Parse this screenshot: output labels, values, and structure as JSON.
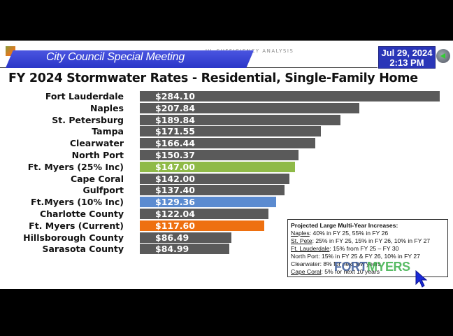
{
  "header": {
    "meeting_banner": "City Council Special Meeting",
    "faint_section_text": "UL SUFFICIENCY ANALYSIS",
    "date": "Jul 29, 2024",
    "time": "2:13 PM"
  },
  "slide": {
    "title": "FY 2024 Stormwater Rates - Residential, Single-Family Home"
  },
  "chart_data": {
    "type": "bar",
    "orientation": "horizontal",
    "title": "FY 2024 Stormwater Rates - Residential, Single-Family Home",
    "xlabel": "",
    "ylabel": "",
    "grid": false,
    "categories": [
      "Fort Lauderdale",
      "Naples",
      "St. Petersburg",
      "Tampa",
      "Clearwater",
      "North Port",
      "Ft. Myers (25% Inc)",
      "Cape Coral",
      "Gulfport",
      "Ft.Myers (10% Inc)",
      "Charlotte County",
      "Ft. Myers (Current)",
      "Hillsborough County",
      "Sarasota County"
    ],
    "values": [
      284.1,
      207.84,
      189.84,
      171.55,
      166.44,
      150.37,
      147.0,
      142.0,
      137.4,
      129.36,
      122.04,
      117.6,
      86.49,
      84.99
    ],
    "labels": [
      "$284.10",
      "$207.84",
      "$189.84",
      "$171.55",
      "$166.44",
      "$150.37",
      "$147.00",
      "$142.00",
      "$137.40",
      "$129.36",
      "$122.04",
      "$117.60",
      "$86.49",
      "$84.99"
    ],
    "colors": [
      "#5a5a5a",
      "#5a5a5a",
      "#5a5a5a",
      "#5a5a5a",
      "#5a5a5a",
      "#5a5a5a",
      "#8fba48",
      "#5a5a5a",
      "#5a5a5a",
      "#5b8bd0",
      "#5a5a5a",
      "#ee7010",
      "#5a5a5a",
      "#5a5a5a"
    ]
  },
  "note": {
    "heading": "Projected Large Multi-Year Increases:",
    "lines": [
      {
        "city": "Naples",
        "text": ": 40% in FY 25, 55% in FY 26"
      },
      {
        "city": "St. Pete",
        "text": ": 25% in FY 25, 15% in FY 26, 10% in FY 27"
      },
      {
        "city": "Ft. Lauderdale",
        "text": ": 15% from FY 25 – FY 30"
      },
      {
        "city": "North Port",
        "text": ": 15% in FY 25 & FY 26, 10% in FY 27"
      },
      {
        "city": "Clearwater",
        "text": ": 8% for next few years"
      },
      {
        "city": "Cape Coral",
        "text": ": 5% for next 10 years"
      }
    ]
  },
  "watermark": {
    "part1": "FORT",
    "part2": "MYERS"
  },
  "colors": {
    "banner": "#2a36c8",
    "bar_default": "#5a5a5a",
    "bar_25pct": "#8fba48",
    "bar_10pct": "#5b8bd0",
    "bar_current": "#ee7010"
  }
}
